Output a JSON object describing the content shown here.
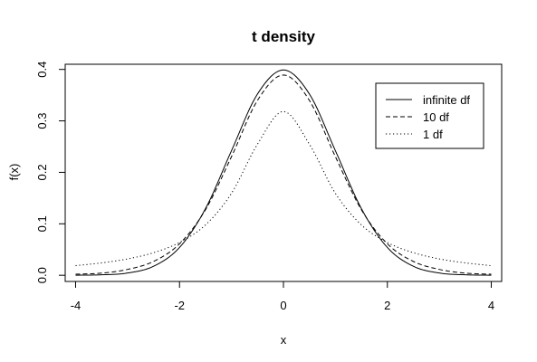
{
  "chart_data": {
    "type": "line",
    "title": "t density",
    "xlabel": "x",
    "ylabel": "f(x)",
    "xlim": [
      -4.2,
      4.2
    ],
    "ylim": [
      -0.012,
      0.41
    ],
    "xticks": [
      -4,
      -2,
      0,
      2,
      4
    ],
    "xtick_labels": [
      "-4",
      "-2",
      "0",
      "2",
      "4"
    ],
    "yticks": [
      0.0,
      0.1,
      0.2,
      0.3,
      0.4
    ],
    "ytick_labels": [
      "0.0",
      "0.1",
      "0.2",
      "0.3",
      "0.4"
    ],
    "grid": false,
    "legend_position": "top-right",
    "x": [
      -4,
      -3.5,
      -3,
      -2.5,
      -2,
      -1.5,
      -1,
      -0.5,
      0,
      0.5,
      1,
      1.5,
      2,
      2.5,
      3,
      3.5,
      4
    ],
    "series": [
      {
        "name": "infinite df",
        "line_style": "solid",
        "values": [
          0.0001,
          0.0009,
          0.0044,
          0.0175,
          0.054,
          0.1295,
          0.242,
          0.3521,
          0.3989,
          0.3521,
          0.242,
          0.1295,
          0.054,
          0.0175,
          0.0044,
          0.0009,
          0.0001
        ]
      },
      {
        "name": "10 df",
        "line_style": "dashed",
        "values": [
          0.002,
          0.0042,
          0.0114,
          0.0269,
          0.0611,
          0.1274,
          0.2304,
          0.3397,
          0.3891,
          0.3397,
          0.2304,
          0.1274,
          0.0611,
          0.0269,
          0.0114,
          0.0042,
          0.002
        ]
      },
      {
        "name": "1 df",
        "line_style": "dotted",
        "values": [
          0.0187,
          0.0241,
          0.0318,
          0.0439,
          0.0637,
          0.0979,
          0.1592,
          0.2546,
          0.3183,
          0.2546,
          0.1592,
          0.0979,
          0.0637,
          0.0439,
          0.0318,
          0.0241,
          0.0187
        ]
      }
    ],
    "colors": {
      "line": "#000000",
      "background": "#ffffff"
    }
  }
}
